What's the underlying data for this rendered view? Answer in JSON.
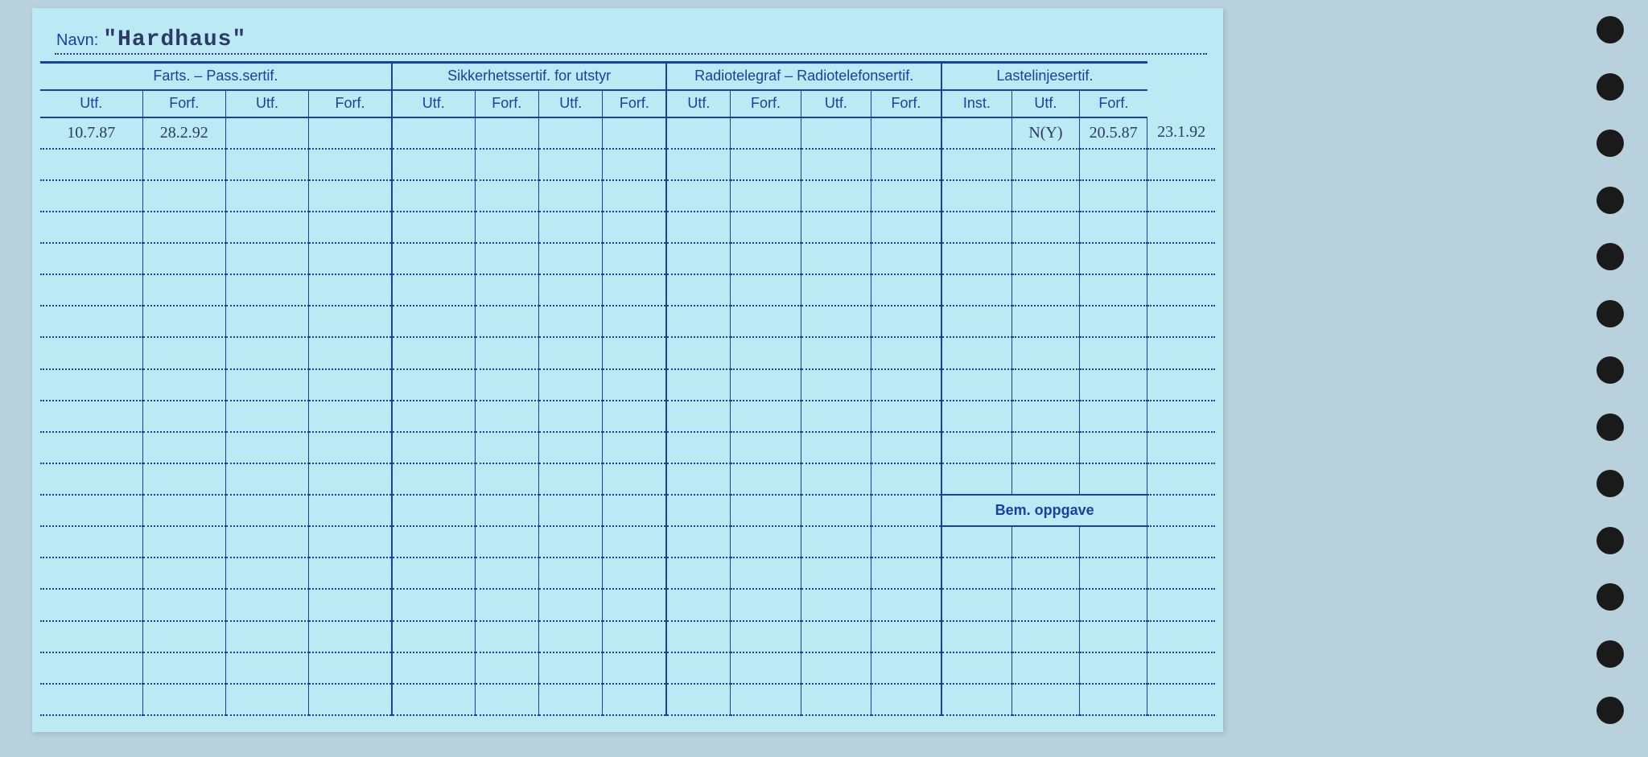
{
  "colors": {
    "page_bg": "#b9d1dd",
    "card_bg": "#bceaf4",
    "line": "#1a3fa6",
    "ink": "#2b3a66",
    "hole": "#1a1a1a"
  },
  "name": {
    "label": "Navn:",
    "value": "\"Hardhaus\""
  },
  "groups": [
    {
      "title": "Farts. – Pass.sertif.",
      "cols": [
        "Utf.",
        "Forf.",
        "Utf.",
        "Forf."
      ]
    },
    {
      "title": "Sikkerhetssertif. for utstyr",
      "cols": [
        "Utf.",
        "Forf.",
        "Utf.",
        "Forf."
      ]
    },
    {
      "title": "Radiotelegraf – Radiotelefonsertif.",
      "cols": [
        "Utf.",
        "Forf.",
        "Utf.",
        "Forf."
      ]
    },
    {
      "title": "Lastelinjesertif.",
      "cols": [
        "Inst.",
        "Utf.",
        "Forf."
      ]
    }
  ],
  "col_widths_pct": [
    8.0,
    6.5,
    6.5,
    6.5,
    6.5,
    5.0,
    5.0,
    5.0,
    5.0,
    5.5,
    5.5,
    5.5,
    5.5,
    5.3,
    5.3,
    5.3
  ],
  "data_row": {
    "c0": "10.7.87",
    "c1": "28.2.92",
    "c13": "N(Y)",
    "c14": "20.5.87",
    "c15": "23.1.92"
  },
  "bem_label": "Bem. oppgave",
  "body_rows": 19,
  "bem_row_index": 12,
  "punch_holes": 13
}
